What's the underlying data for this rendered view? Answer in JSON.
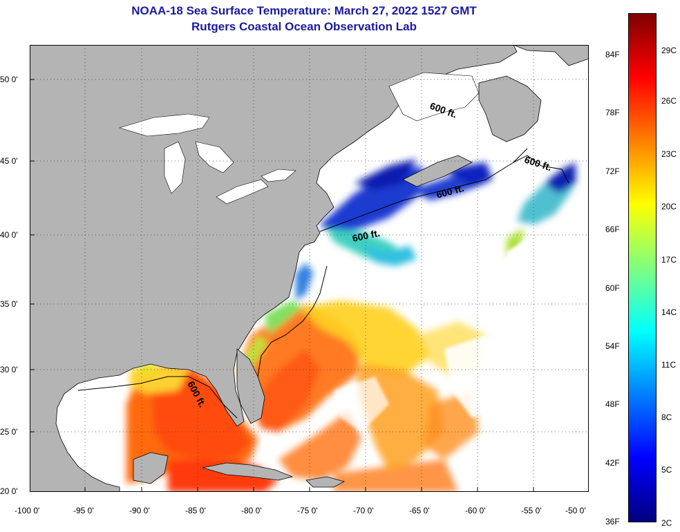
{
  "title": "NOAA-18 Sea Surface Temperature:  March 27, 2022 1527 GMT",
  "subtitle": "Rutgers Coastal Ocean Observation Lab",
  "lat_labels": [
    "50 0'",
    "45 0'",
    "40 0'",
    "35 0'",
    "30 0'",
    "25 0'",
    "20 0'"
  ],
  "lon_labels": [
    "-100 0'",
    "-95 0'",
    "-90 0'",
    "-85 0'",
    "-80 0'",
    "-75 0'",
    "-70 0'",
    "-65 0'",
    "-60 0'",
    "-55 0'",
    "-50 0'"
  ],
  "contour_labels": [
    "600 ft.",
    "600 ft.",
    "600 ft.",
    "600 ft.",
    "600 ft."
  ],
  "colorbar": {
    "fahrenheit": [
      "84F",
      "78F",
      "72F",
      "66F",
      "60F",
      "54F",
      "48F",
      "42F",
      "36F"
    ],
    "celsius": [
      "29C",
      "26C",
      "23C",
      "20C",
      "17C",
      "14C",
      "11C",
      "8C",
      "5C",
      "2C"
    ],
    "colors": [
      "#00007f",
      "#0000ff",
      "#007fff",
      "#00ffff",
      "#7fff7f",
      "#ffff00",
      "#ff7f00",
      "#ff0000",
      "#7f0000"
    ]
  },
  "colors": {
    "land": "#b4b4b4",
    "title": "#1a1aa0"
  }
}
